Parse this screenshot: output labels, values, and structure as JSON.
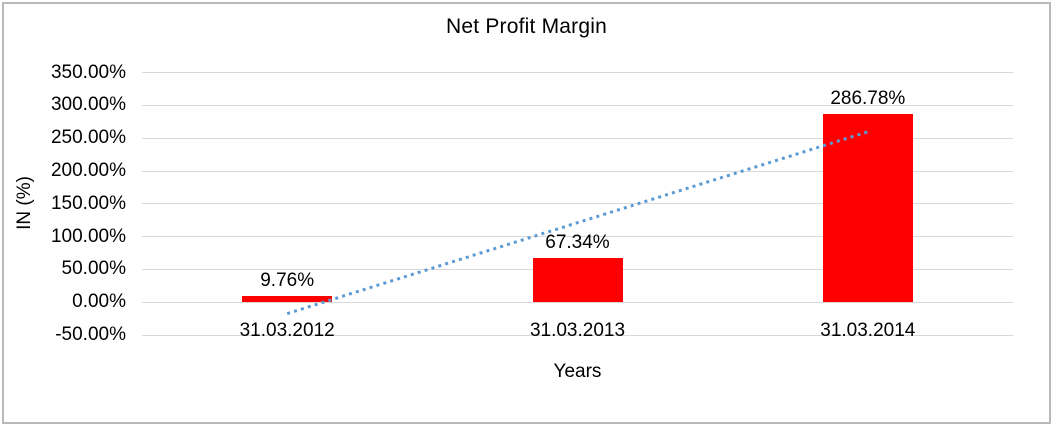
{
  "chart_data": {
    "type": "bar",
    "title": "Net Profit Margin",
    "xlabel": "Years",
    "ylabel": "IN (%)",
    "categories": [
      "31.03.2012",
      "31.03.2013",
      "31.03.2014"
    ],
    "values": [
      9.76,
      67.34,
      286.78
    ],
    "data_labels": [
      "9.76%",
      "67.34%",
      "286.78%"
    ],
    "ylim": [
      -50,
      350
    ],
    "yticks": [
      {
        "value": 350,
        "label": "350.00%"
      },
      {
        "value": 300,
        "label": "300.00%"
      },
      {
        "value": 250,
        "label": "250.00%"
      },
      {
        "value": 200,
        "label": "200.00%"
      },
      {
        "value": 150,
        "label": "150.00%"
      },
      {
        "value": 100,
        "label": "100.00%"
      },
      {
        "value": 50,
        "label": "50.00%"
      },
      {
        "value": 0,
        "label": "0.00%"
      },
      {
        "value": -50,
        "label": "-50.00%"
      }
    ],
    "grid": true,
    "legend": false,
    "trendline": {
      "kind": "linear-regression",
      "style": "dotted"
    },
    "colors": {
      "bar": "#FF0000",
      "trendline": "#5B9BD5",
      "gridline": "#D9D9D9",
      "text": "#000000",
      "frame_border": "#B9B9B9",
      "background": "#FFFFFF"
    }
  }
}
